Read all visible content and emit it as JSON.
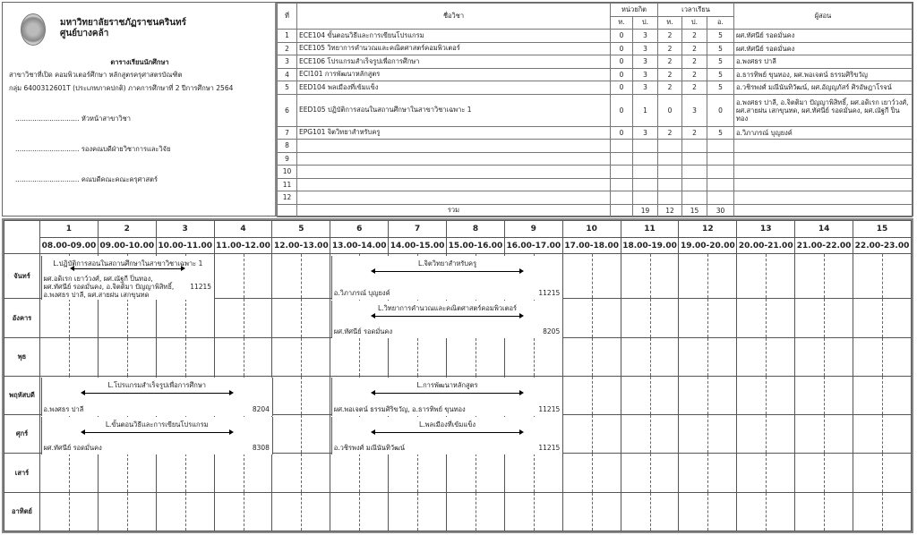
{
  "header": {
    "university": "มหาวิทยาลัยราชภัฏราชนครินทร์",
    "campus": "ศูนย์บางคล้า",
    "title": "ตารางเรียนนักศึกษา",
    "program": "สาขาวิชาที่เปิด คอมพิวเตอร์ศึกษา  หลักสูตรครุศาสตรบัณฑิต",
    "group": "กลุ่ม 6400312601T (ประเภทภาคปกติ) ภาคการศึกษาที่ 2 ปีการศึกษา 2564",
    "signatures": [
      ".............................. หัวหน้าสาขาวิชา",
      ".............................. รองคณบดีฝ่ายวิชาการและวิจัย",
      ".............................. คณบดีคณะคณะครุศาสตร์"
    ]
  },
  "courses": {
    "headers": {
      "no": "ที่",
      "name": "ชื่อวิชา",
      "credit": "หน่วยกิต",
      "hours": "เวลาเรียน",
      "teacher": "ผู้สอน",
      "t": "ท.",
      "p": "ป.",
      "o": "อ."
    },
    "rows": [
      {
        "no": "1",
        "name": "ECE104 ขั้นตอนวิธีและการเขียนโปรแกรม",
        "c1": "0",
        "c2": "3",
        "h1": "2",
        "h2": "2",
        "h3": "5",
        "teacher": "ผศ.ทัศนีย์ รอดมั่นคง"
      },
      {
        "no": "2",
        "name": "ECE105 วิทยาการคำนวณและคณิตศาสตร์คอมพิวเตอร์",
        "c1": "0",
        "c2": "3",
        "h1": "2",
        "h2": "2",
        "h3": "5",
        "teacher": "ผศ.ทัศนีย์ รอดมั่นคง"
      },
      {
        "no": "3",
        "name": "ECE106 โปรแกรมสำเร็จรูปเพื่อการศึกษา",
        "c1": "0",
        "c2": "3",
        "h1": "2",
        "h2": "2",
        "h3": "5",
        "teacher": "อ.พงศธร ปาลี"
      },
      {
        "no": "4",
        "name": "ECI101 การพัฒนาหลักสูตร",
        "c1": "0",
        "c2": "3",
        "h1": "2",
        "h2": "2",
        "h3": "5",
        "teacher": "อ.ธารทิพย์ ขุนทอง, ผศ.พอเจตน์ ธรรมศิริขวัญ"
      },
      {
        "no": "5",
        "name": "EED104 พลเมืองที่เข้มแข็ง",
        "c1": "0",
        "c2": "3",
        "h1": "2",
        "h2": "2",
        "h3": "5",
        "teacher": "อ.วชิรพงศ์ มณีนันทิวัฒน์, ผศ.อัญญภัสร์ ศิรอัษฎาโรจน์"
      },
      {
        "no": "6",
        "name": "EED105 ปฏิบัติการสอนในสถานศึกษาในสาขาวิชาเฉพาะ 1",
        "c1": "0",
        "c2": "1",
        "h1": "0",
        "h2": "3",
        "h3": "0",
        "teacher": "อ.พงศธร ปาลี, อ.จิตติมา ปัญญาพิสิทธิ์, ผศ.อดิเรก เยาว์วงศ์, ผศ.สายฝน เสกขุนทด, ผศ.ทัศนีย์ รอดมั่นคง, ผศ.ณัฐกี ปิ่นทอง"
      },
      {
        "no": "7",
        "name": "EPG101 จิตวิทยาสำหรับครู",
        "c1": "0",
        "c2": "3",
        "h1": "2",
        "h2": "2",
        "h3": "5",
        "teacher": "อ.วิภาภรณ์ บุญยงค์"
      },
      {
        "no": "8"
      },
      {
        "no": "9"
      },
      {
        "no": "10"
      },
      {
        "no": "11"
      },
      {
        "no": "12"
      }
    ],
    "total": {
      "label": "รวม",
      "c2": "19",
      "h1": "12",
      "h2": "15",
      "h3": "30"
    }
  },
  "schedule": {
    "periods": [
      "1",
      "2",
      "3",
      "4",
      "5",
      "6",
      "7",
      "8",
      "9",
      "10",
      "11",
      "12",
      "13",
      "14",
      "15"
    ],
    "times": [
      "08.00-09.00",
      "09.00-10.00",
      "10.00-11.00",
      "11.00-12.00",
      "12.00-13.00",
      "13.00-14.00",
      "14.00-15.00",
      "15.00-16.00",
      "16.00-17.00",
      "17.00-18.00",
      "18.00-19.00",
      "19.00-20.00",
      "20.00-21.00",
      "21.00-22.00",
      "22.00-23.00"
    ],
    "days": [
      "จันทร์",
      "อังคาร",
      "พุธ",
      "พฤหัสบดี",
      "ศุกร์",
      "เสาร์",
      "อาทิตย์"
    ],
    "events": [
      {
        "day": 0,
        "start": 1,
        "end": 3,
        "name": "L.ปฏิบัติการสอนในสถานศึกษาในสาขาวิชาเฉพาะ 1",
        "teacher": "ผศ.อดิเรก เยาว์วงศ์, ผศ.ณัฐกี ปิ่นทอง, ผศ.ทัศนีย์ รอดมั่นคง, อ.จิตติมา ปัญญาพิสิทธิ์, อ.พงศธร ปาลี, ผศ.สายฝน เสกขุนทด",
        "room": "11215"
      },
      {
        "day": 0,
        "start": 6,
        "end": 9,
        "name": "L.จิตวิทยาสำหรับครู",
        "teacher": "อ.วิภาภรณ์ บุญยงค์",
        "room": "11215"
      },
      {
        "day": 1,
        "start": 6,
        "end": 9,
        "name": "L.วิทยาการคำนวณและคณิตศาสตร์คอมพิวเตอร์",
        "teacher": "ผศ.ทัศนีย์ รอดมั่นคง",
        "room": "8205"
      },
      {
        "day": 3,
        "start": 1,
        "end": 4,
        "name": "L.โปรแกรมสำเร็จรูปเพื่อการศึกษา",
        "teacher": "อ.พงศธร ปาลี",
        "room": "8204"
      },
      {
        "day": 3,
        "start": 6,
        "end": 9,
        "name": "L.การพัฒนาหลักสูตร",
        "teacher": "ผศ.พอเจตน์ ธรรมศิริขวัญ, อ.ธารทิพย์ ขุนทอง",
        "room": "11215"
      },
      {
        "day": 4,
        "start": 1,
        "end": 4,
        "name": "L.ขั้นตอนวิธีและการเขียนโปรแกรม",
        "teacher": "ผศ.ทัศนีย์ รอดมั่นคง",
        "room": "8308"
      },
      {
        "day": 4,
        "start": 6,
        "end": 9,
        "name": "L.พลเมืองที่เข้มแข็ง",
        "teacher": "อ.วชิรพงศ์ มณีนันทิวัฒน์",
        "room": "11215"
      }
    ]
  }
}
